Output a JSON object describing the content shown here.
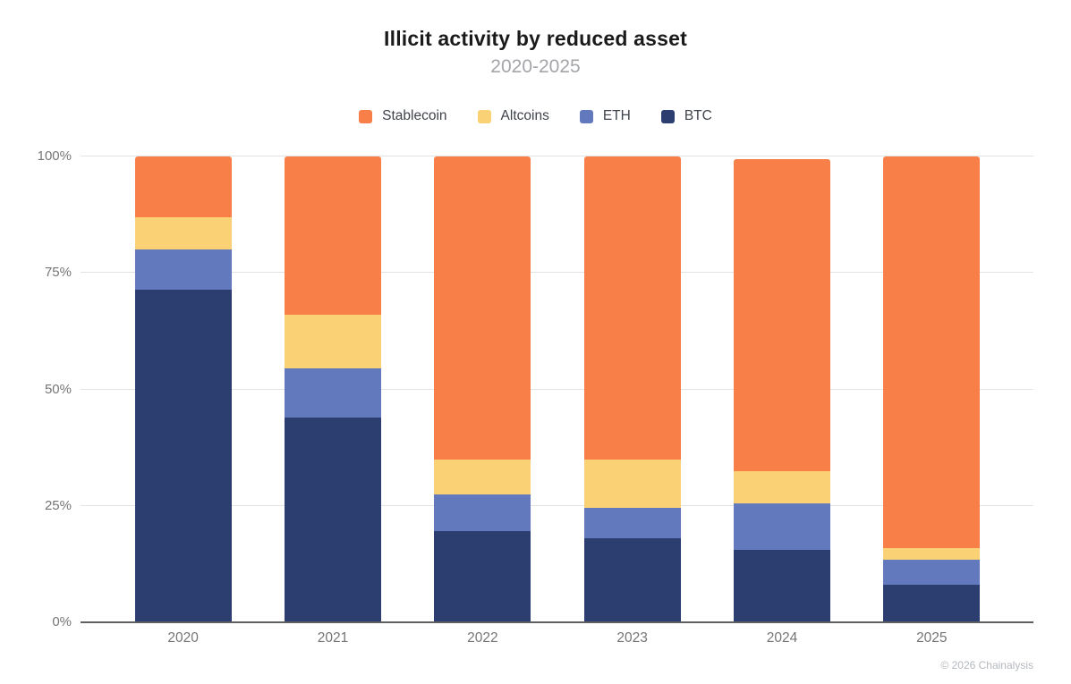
{
  "chart_data": {
    "type": "bar",
    "stacked": true,
    "units": "percent",
    "title": "Illicit activity by reduced asset",
    "subtitle": "2020-2025",
    "categories": [
      "2020",
      "2021",
      "2022",
      "2023",
      "2024",
      "2025"
    ],
    "series": [
      {
        "name": "BTC",
        "color": "#2C3D6F",
        "values": [
          71.5,
          44,
          19.5,
          18,
          15.5,
          8
        ]
      },
      {
        "name": "ETH",
        "color": "#6379BD",
        "values": [
          8.5,
          10.5,
          8,
          6.5,
          10,
          5.5
        ]
      },
      {
        "name": "Altcoins",
        "color": "#FAD175",
        "values": [
          7,
          11.5,
          7.5,
          10.5,
          7,
          2.5
        ]
      },
      {
        "name": "Stablecoin",
        "color": "#F97F48",
        "values": [
          13,
          34,
          65,
          65,
          67,
          84
        ]
      }
    ],
    "legend_order": [
      "Stablecoin",
      "Altcoins",
      "ETH",
      "BTC"
    ],
    "legend_position": "top",
    "xlabel": "",
    "ylabel": "",
    "ylim": [
      0,
      100
    ],
    "yticks": [
      {
        "value": 0,
        "label": "0%"
      },
      {
        "value": 25,
        "label": "25%"
      },
      {
        "value": 50,
        "label": "50%"
      },
      {
        "value": 75,
        "label": "75%"
      },
      {
        "value": 100,
        "label": "100%"
      }
    ],
    "grid": true
  },
  "footer": {
    "copyright": "© 2026 Chainalysis"
  },
  "colors": {
    "background": "#ffffff",
    "title": "#1a1a1a",
    "subtitle": "#a3a5a9",
    "legend_text": "#3f434a",
    "axis_label": "#757575",
    "gridline": "#e2e2e2",
    "axis_line": "#5d5f63",
    "footer_text": "#b4b8bd"
  }
}
